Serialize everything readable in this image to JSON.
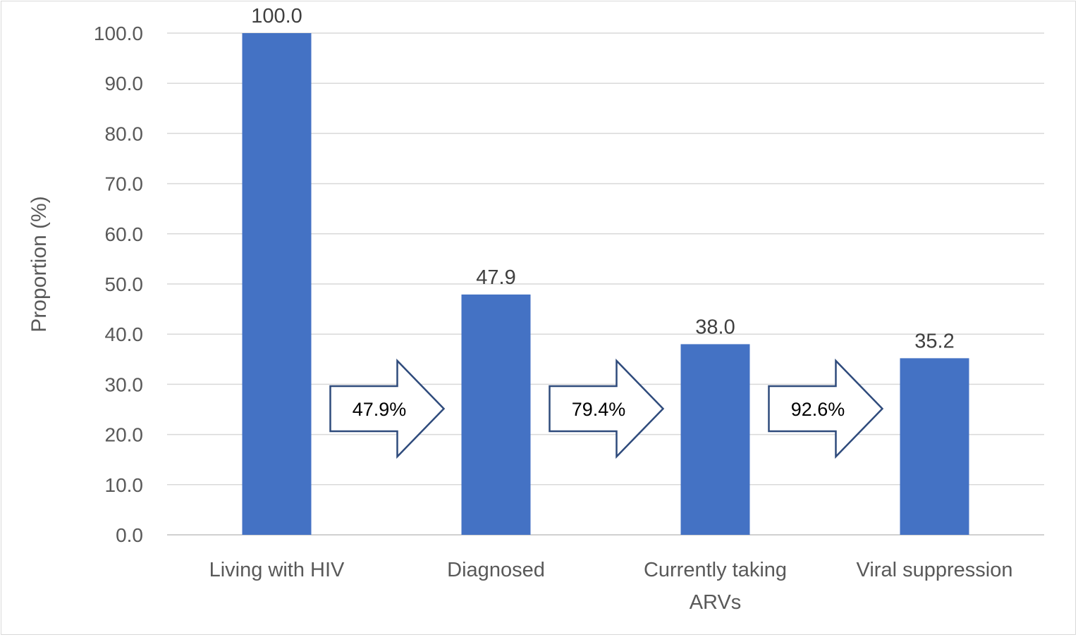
{
  "chart_data": {
    "type": "bar",
    "title": "",
    "xlabel": "",
    "ylabel": "Proportion (%)",
    "ylim": [
      0,
      100
    ],
    "yticks": [
      "0.0",
      "10.0",
      "20.0",
      "30.0",
      "40.0",
      "50.0",
      "60.0",
      "70.0",
      "80.0",
      "90.0",
      "100.0"
    ],
    "categories": [
      [
        "Living with HIV"
      ],
      [
        "Diagnosed"
      ],
      [
        "Currently taking",
        "ARVs"
      ],
      [
        "Viral suppression"
      ]
    ],
    "values": [
      100.0,
      47.9,
      38.0,
      35.2
    ],
    "data_labels": [
      "100.0",
      "47.9",
      "38.0",
      "35.2"
    ],
    "bar_color": "#4472c4",
    "grid": true,
    "annotations": [
      {
        "text": "47.9%",
        "between": [
          0,
          1
        ]
      },
      {
        "text": "79.4%",
        "between": [
          1,
          2
        ]
      },
      {
        "text": "92.6%",
        "between": [
          2,
          3
        ]
      }
    ],
    "arrow_outline_color": "#2f4b7c"
  }
}
